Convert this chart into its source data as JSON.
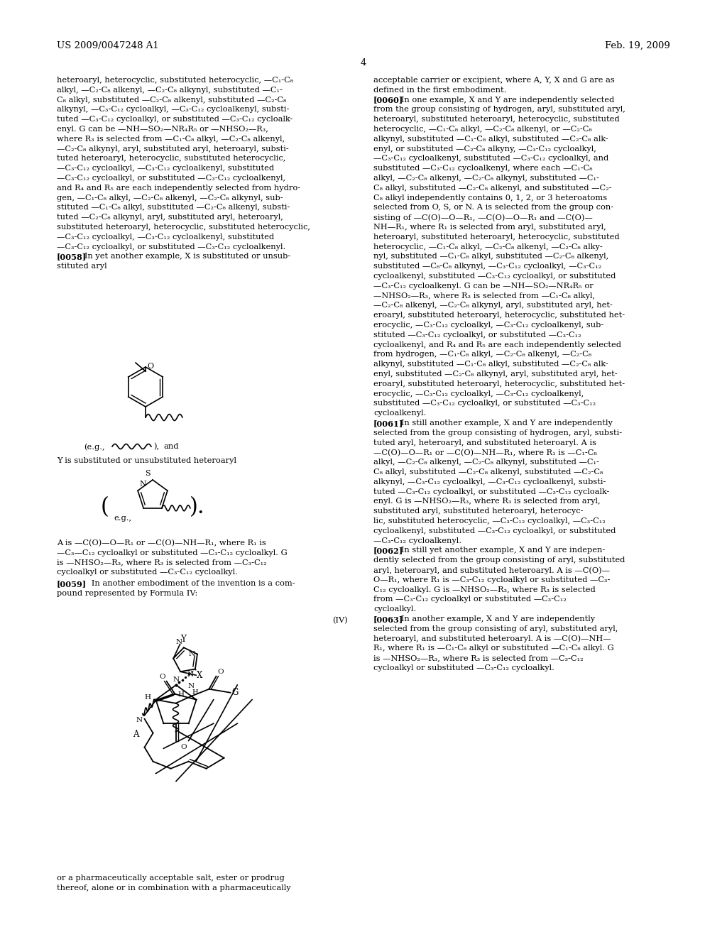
{
  "bg_color": "#ffffff",
  "header_left": "US 2009/0047248 A1",
  "header_right": "Feb. 19, 2009",
  "page_number": "4",
  "left_col_lines": [
    "heteroaryl, heterocyclic, substituted heterocyclic, —C₁-C₈",
    "alkyl, —C₂-C₈ alkenyl, —C₂-C₈ alkynyl, substituted —C₁-",
    "C₈ alkyl, substituted —C₂-C₈ alkenyl, substituted —C₂-C₈",
    "alkynyl, —C₃-C₁₂ cycloalkyl, —C₃-C₁₂ cycloalkenyl, substi-",
    "tuted —C₃-C₁₂ cycloalkyl, or substituted —C₃-C₁₂ cycloalk-",
    "enyl. G can be —NH—SO₂—NR₄R₅ or —NHSO₂—R₃,",
    "where R₃ is selected from —C₁-C₈ alkyl, —C₂-C₈ alkenyl,",
    "—C₂-C₈ alkynyl, aryl, substituted aryl, heteroaryl, substi-",
    "tuted heteroaryl, heterocyclic, substituted heterocyclic,",
    "—C₃-C₁₂ cycloalkyl, —C₃-C₁₂ cycloalkenyl, substituted",
    "—C₃-C₁₂ cycloalkyl, or substituted —C₃-C₁₂ cycloalkenyl,",
    "and R₄ and R₅ are each independently selected from hydro-",
    "gen, —C₁-C₈ alkyl, —C₂-C₈ alkenyl, —C₂-C₈ alkynyl, sub-",
    "stituted —C₁-C₈ alkyl, substituted —C₂-C₈ alkenyl, substi-",
    "tuted —C₂-C₈ alkynyl, aryl, substituted aryl, heteroaryl,",
    "substituted heteroaryl, heterocyclic, substituted heterocyclic,",
    "—C₃-C₁₂ cycloalkyl, —C₃-C₁₂ cycloalkenyl, substituted",
    "—C₃-C₁₂ cycloalkyl, or substituted —C₃-C₁₂ cycloalkenyl.",
    "[0058]   In yet another example, X is substituted or unsub-",
    "stituted aryl"
  ],
  "right_col_lines": [
    "acceptable carrier or excipient, where A, Y, X and G are as",
    "defined in the first embodiment.",
    "[0060]   In one example, X and Y are independently selected",
    "from the group consisting of hydrogen, aryl, substituted aryl,",
    "heteroaryl, substituted heteroaryl, heterocyclic, substituted",
    "heterocyclic, —C₁-C₈ alkyl, —C₂-C₈ alkenyl, or —C₂-C₈",
    "alkynyl, substituted —C₁-C₈ alkyl, substituted —C₂-C₈ alk-",
    "enyl, or substituted —C₂-C₈ alkyny, —C₃-C₁₂ cycloalkyl,",
    "—C₃-C₁₂ cycloalkenyl, substituted —C₃-C₁₂ cycloalkyl, and",
    "substituted —C₃-C₁₂ cycloalkenyl, where each —C₁-C₈",
    "alkyl, —C₂-C₈ alkenyl, —C₂-C₈ alkynyl, substituted —C₁-",
    "C₈ alkyl, substituted —C₂-C₈ alkenyl, and substituted —C₂-",
    "C₈ alkyl independently contains 0, 1, 2, or 3 heteroatoms",
    "selected from O, S, or N. A is selected from the group con-",
    "sisting of —C(O)—O—R₁, —C(O)—O—R₁ and —C(O)—",
    "NH—R₁, where R₁ is selected from aryl, substituted aryl,",
    "heteroaryl, substituted heteroaryl, heterocyclic, substituted",
    "heterocyclic, —C₁-C₈ alkyl, —C₂-C₈ alkenyl, —C₂-C₈ alky-",
    "nyl, substituted —C₁-C₈ alkyl, substituted —C₂-C₈ alkenyl,",
    "substituted —C₈-C₈ alkynyl, —C₃-C₁₂ cycloalkyl, —C₃-C₁₂",
    "cycloalkenyl, substituted —C₃-C₁₂ cycloalkyl, or substituted",
    "—C₃-C₁₂ cycloalkenyl. G can be —NH—SO₂—NR₄R₅ or",
    "—NHSO₂—R₃, where R₃ is selected from —C₁-C₈ alkyl,",
    "—C₂-C₈ alkenyl, —C₂-C₈ alkynyl, aryl, substituted aryl, het-",
    "eroaryl, substituted heteroaryl, heterocyclic, substituted het-",
    "erocyclic, —C₃-C₁₂ cycloalkyl, —C₃-C₁₂ cycloalkenyl, sub-",
    "stituted —C₃-C₁₂ cycloalkyl, or substituted —C₃-C₁₂",
    "cycloalkenyl, and R₄ and R₅ are each independently selected",
    "from hydrogen, —C₁-C₈ alkyl, —C₂-C₈ alkenyl, —C₂-C₈",
    "alkynyl, substituted —C₁-C₈ alkyl, substituted —C₂-C₈ alk-",
    "enyl, substituted —C₂-C₈ alkynyl, aryl, substituted aryl, het-",
    "eroaryl, substituted heteroaryl, heterocyclic, substituted het-",
    "erocyclic, —C₃-C₁₂ cycloalkyl, —C₃-C₁₂ cycloalkenyl,",
    "substituted —C₃-C₁₂ cycloalkyl, or substituted —C₃-C₁₂",
    "cycloalkenyl.",
    "[0061]   In still another example, X and Y are independently",
    "selected from the group consisting of hydrogen, aryl, substi-",
    "tuted aryl, heteroaryl, and substituted heteroaryl. A is",
    "—C(O)—O—R₁ or —C(O)—NH—R₁, where R₁ is —C₁-C₈",
    "alkyl, —C₂-C₈ alkenyl, —C₂-C₈ alkynyl, substituted —C₁-",
    "C₈ alkyl, substituted —C₂-C₈ alkenyl, substituted —C₂-C₈",
    "alkynyl, —C₃-C₁₂ cycloalkyl, —C₃-C₁₂ cycloalkenyl, substi-",
    "tuted —C₃-C₁₂ cycloalkyl, or substituted —C₃-C₁₂ cycloalk-",
    "enyl. G is —NHSO₂—R₃, where R₃ is selected from aryl,",
    "substituted aryl, substituted heteroaryl, heterocyc-",
    "lic, substituted heterocyclic, —C₃-C₁₂ cycloalkyl, —C₃-C₁₂",
    "cycloalkenyl, substituted —C₃-C₁₂ cycloalkyl, or substituted",
    "—C₃-C₁₂ cycloalkenyl.",
    "[0062]   In still yet another example, X and Y are indepen-",
    "dently selected from the group consisting of aryl, substituted",
    "aryl, heteroaryl, and substituted heteroaryl. A is —C(O)—",
    "O—R₁, where R₁ is —C₃-C₁₂ cycloalkyl or substituted —C₃-",
    "C₁₂ cycloalkyl. G is —NHSO₂—R₃, where R₃ is selected",
    "from —C₃-C₁₂ cycloalkyl or substituted —C₃-C₁₂",
    "cycloalkyl.",
    "[0063]   In another example, X and Y are independently",
    "selected from the group consisting of aryl, substituted aryl,",
    "heteroaryl, and substituted heteroaryl. A is —C(O)—NH—",
    "R₁, where R₁ is —C₁-C₈ alkyl or substituted —C₁-C₈ alkyl. G",
    "is —NHSO₂—R₃, where R₃ is selected from —C₃-C₁₂",
    "cycloalkyl or substituted —C₃-C₁₂ cycloalkyl."
  ],
  "bottom_left_lines": [
    "or a pharmaceutically acceptable salt, ester or prodrug",
    "thereof, alone or in combination with a pharmaceutically"
  ]
}
